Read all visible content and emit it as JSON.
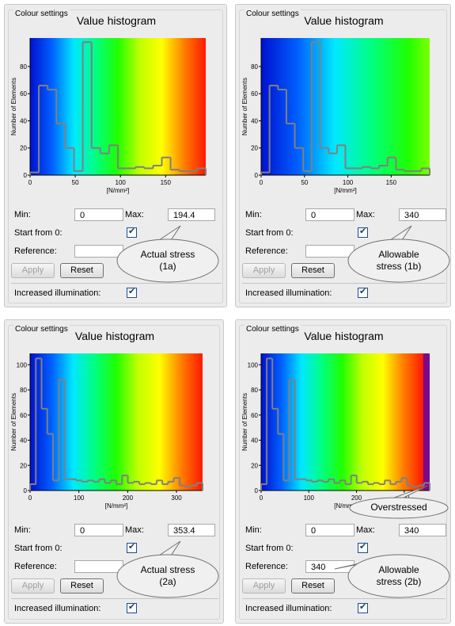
{
  "panels": [
    {
      "group_title": "Colour settings",
      "histogram": {
        "type": "histogram",
        "title": "Value histogram",
        "y_label": "Number of Elements",
        "x_label": "[N/mm²]",
        "bins": [
          0,
          9.72,
          19.44,
          29.16,
          38.88,
          48.6,
          58.32,
          68.04,
          77.76,
          87.48,
          97.2,
          106.92,
          116.64,
          126.36,
          136.08,
          145.8,
          155.52,
          165.24,
          174.96,
          184.68,
          194.4
        ],
        "counts": [
          2,
          66,
          63,
          38,
          20,
          3,
          98,
          20,
          16,
          22,
          5,
          5,
          6,
          5,
          7,
          13,
          4,
          3,
          3,
          5
        ],
        "xlim": [
          0,
          194.4
        ],
        "ylim": [
          0,
          101
        ],
        "xticks": [
          0,
          50,
          100,
          150
        ],
        "yticks": [
          0,
          20,
          40,
          60,
          80
        ],
        "line_color": "#808080",
        "colormap": [
          "#0010d0",
          "#0060ff",
          "#00e8ff",
          "#00ff80",
          "#20ff00",
          "#c0ff00",
          "#ffff00",
          "#ff8000",
          "#ff1800"
        ]
      },
      "form": {
        "min_label": "Min:",
        "min": 0,
        "max_label": "Max:",
        "max": 194.4,
        "start_label": "Start from 0:",
        "start_from_0": true,
        "reference_label": "Reference:",
        "apply": "Apply",
        "reset": "Reset",
        "illumination_label": "Increased illumination:",
        "increased_illumination": true
      },
      "callout": "Actual stress (1a)"
    },
    {
      "group_title": "Colour settings",
      "histogram": {
        "type": "histogram",
        "title": "Value histogram",
        "y_label": "Number of Elements",
        "x_label": "[N/mm²]",
        "bins": [
          0,
          9.72,
          19.44,
          29.16,
          38.88,
          48.6,
          58.32,
          68.04,
          77.76,
          87.48,
          97.2,
          106.92,
          116.64,
          126.36,
          136.08,
          145.8,
          155.52,
          165.24,
          174.96,
          184.68,
          194.4
        ],
        "counts": [
          2,
          66,
          63,
          38,
          20,
          3,
          98,
          20,
          16,
          22,
          5,
          5,
          6,
          5,
          7,
          13,
          4,
          3,
          3,
          5
        ],
        "xlim": [
          0,
          194.4
        ],
        "ylim": [
          0,
          101
        ],
        "xticks": [
          0,
          50,
          100,
          150
        ],
        "yticks": [
          0,
          20,
          40,
          60,
          80
        ],
        "line_color": "#808080",
        "colormap": [
          "#0010d0",
          "#0060ff",
          "#00e8ff",
          "#00ff80",
          "#20ff00",
          "#c0ff00",
          "#ffff00",
          "#ff8000",
          "#ff1800"
        ]
      },
      "form": {
        "min_label": "Min:",
        "min": 0,
        "max_label": "Max:",
        "max": 340,
        "start_label": "Start from 0:",
        "start_from_0": true,
        "reference_label": "Reference:",
        "apply": "Apply",
        "reset": "Reset",
        "illumination_label": "Increased illumination:",
        "increased_illumination": true
      },
      "callout": "Allowable stress (1b)"
    },
    {
      "group_title": "Colour settings",
      "histogram": {
        "type": "histogram",
        "title": "Value histogram",
        "y_label": "Number of Elements",
        "x_label": "[N/mm²]",
        "bins": [
          0,
          11.78,
          23.56,
          35.34,
          47.12,
          58.9,
          70.68,
          82.46,
          94.24,
          106.02,
          117.8,
          129.58,
          141.36,
          153.14,
          164.92,
          176.7,
          188.48,
          200.26,
          212.04,
          223.82,
          235.6,
          247.38,
          259.16,
          270.94,
          282.72,
          294.5,
          306.28,
          318.06,
          329.84,
          341.62,
          353.4
        ],
        "counts": [
          5,
          105,
          65,
          45,
          8,
          88,
          9,
          9,
          8,
          7,
          8,
          7,
          9,
          6,
          8,
          5,
          12,
          6,
          7,
          5,
          6,
          5,
          8,
          5,
          7,
          10,
          4,
          3,
          4,
          6
        ],
        "xlim": [
          0,
          353.4
        ],
        "ylim": [
          0,
          109
        ],
        "xticks": [
          0,
          100,
          200,
          300
        ],
        "yticks": [
          0,
          20,
          40,
          60,
          80,
          100
        ],
        "line_color": "#808080",
        "colormap": [
          "#0010d0",
          "#0060ff",
          "#00e8ff",
          "#00ff80",
          "#20ff00",
          "#c0ff00",
          "#ffff00",
          "#ff8000",
          "#ff1800"
        ]
      },
      "form": {
        "min_label": "Min:",
        "min": 0,
        "max_label": "Max:",
        "max": 353.4,
        "start_label": "Start from 0:",
        "start_from_0": true,
        "reference_label": "Reference:",
        "apply": "Apply",
        "reset": "Reset",
        "illumination_label": "Increased illumination:",
        "increased_illumination": true
      },
      "callout": "Actual stress (2a)"
    },
    {
      "group_title": "Colour settings",
      "histogram": {
        "type": "histogram",
        "title": "Value histogram",
        "y_label": "Number of Elements",
        "x_label": "[N/mm²]",
        "bins": [
          0,
          11.78,
          23.56,
          35.34,
          47.12,
          58.9,
          70.68,
          82.46,
          94.24,
          106.02,
          117.8,
          129.58,
          141.36,
          153.14,
          164.92,
          176.7,
          188.48,
          200.26,
          212.04,
          223.82,
          235.6,
          247.38,
          259.16,
          270.94,
          282.72,
          294.5,
          306.28,
          318.06,
          329.84,
          341.62,
          353.4
        ],
        "counts": [
          5,
          105,
          65,
          45,
          8,
          88,
          9,
          9,
          8,
          7,
          8,
          7,
          9,
          6,
          8,
          5,
          12,
          6,
          7,
          5,
          6,
          5,
          8,
          5,
          7,
          10,
          4,
          3,
          4,
          6
        ],
        "xlim": [
          0,
          353.4
        ],
        "ylim": [
          0,
          109
        ],
        "xticks": [
          0,
          100,
          200,
          300
        ],
        "yticks": [
          0,
          20,
          40,
          60,
          80,
          100
        ],
        "line_color": "#808080",
        "colormap": [
          "#0010d0",
          "#0060ff",
          "#00e8ff",
          "#00ff80",
          "#20ff00",
          "#c0ff00",
          "#ffff00",
          "#ff8000",
          "#ff1800"
        ],
        "overstress_color": "#7a0a8a"
      },
      "form": {
        "min_label": "Min:",
        "min": 0,
        "max_label": "Max:",
        "max": 340,
        "start_label": "Start from 0:",
        "start_from_0": true,
        "reference_label": "Reference:",
        "reference": 340,
        "apply": "Apply",
        "reset": "Reset",
        "illumination_label": "Increased illumination:",
        "increased_illumination": true
      },
      "callout": "Allowable stress (2b)",
      "overstressed_label": "Overstressed"
    }
  ]
}
